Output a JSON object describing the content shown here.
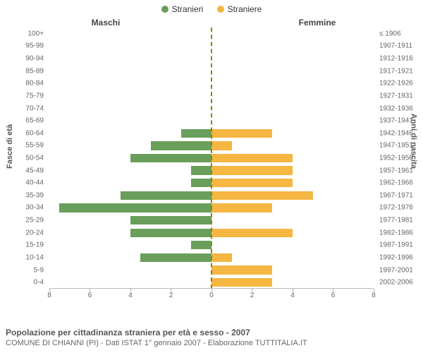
{
  "legend": {
    "male": {
      "label": "Stranieri",
      "color": "#6a9e5b"
    },
    "female": {
      "label": "Straniere",
      "color": "#f5b642"
    }
  },
  "column_headers": {
    "left": "Maschi",
    "right": "Femmine"
  },
  "axis_titles": {
    "left": "Fasce di età",
    "right": "Anni di nascita"
  },
  "chart": {
    "type": "population_pyramid",
    "x_max": 8,
    "x_ticks": [
      8,
      6,
      4,
      2,
      0,
      2,
      4,
      6,
      8
    ],
    "bar_fill_ratio": 0.7,
    "colors": {
      "male": "#6a9e5b",
      "female": "#f5b642",
      "center_line": "#888800",
      "grid": "#bbbbbb"
    },
    "age_groups": [
      {
        "age": "0-4",
        "birth": "2002-2006",
        "m": 0,
        "f": 3
      },
      {
        "age": "5-9",
        "birth": "1997-2001",
        "m": 0,
        "f": 3
      },
      {
        "age": "10-14",
        "birth": "1992-1996",
        "m": 3.5,
        "f": 1
      },
      {
        "age": "15-19",
        "birth": "1987-1991",
        "m": 1,
        "f": 0
      },
      {
        "age": "20-24",
        "birth": "1982-1986",
        "m": 4,
        "f": 4
      },
      {
        "age": "25-29",
        "birth": "1977-1981",
        "m": 4,
        "f": 0
      },
      {
        "age": "30-34",
        "birth": "1972-1976",
        "m": 7.5,
        "f": 3
      },
      {
        "age": "35-39",
        "birth": "1967-1971",
        "m": 4.5,
        "f": 5
      },
      {
        "age": "40-44",
        "birth": "1962-1966",
        "m": 1,
        "f": 4
      },
      {
        "age": "45-49",
        "birth": "1957-1961",
        "m": 1,
        "f": 4
      },
      {
        "age": "50-54",
        "birth": "1952-1956",
        "m": 4,
        "f": 4
      },
      {
        "age": "55-59",
        "birth": "1947-1951",
        "m": 3,
        "f": 1
      },
      {
        "age": "60-64",
        "birth": "1942-1946",
        "m": 1.5,
        "f": 3
      },
      {
        "age": "65-69",
        "birth": "1937-1941",
        "m": 0,
        "f": 0
      },
      {
        "age": "70-74",
        "birth": "1932-1936",
        "m": 0,
        "f": 0
      },
      {
        "age": "75-79",
        "birth": "1927-1931",
        "m": 0,
        "f": 0
      },
      {
        "age": "80-84",
        "birth": "1922-1926",
        "m": 0,
        "f": 0
      },
      {
        "age": "85-89",
        "birth": "1917-1921",
        "m": 0,
        "f": 0
      },
      {
        "age": "90-94",
        "birth": "1912-1916",
        "m": 0,
        "f": 0
      },
      {
        "age": "95-99",
        "birth": "1907-1911",
        "m": 0,
        "f": 0
      },
      {
        "age": "100+",
        "birth": "≤ 1906",
        "m": 0,
        "f": 0
      }
    ]
  },
  "footer": {
    "title": "Popolazione per cittadinanza straniera per età e sesso - 2007",
    "subtitle": "COMUNE DI CHIANNI (PI) - Dati ISTAT 1° gennaio 2007 - Elaborazione TUTTITALIA.IT"
  }
}
